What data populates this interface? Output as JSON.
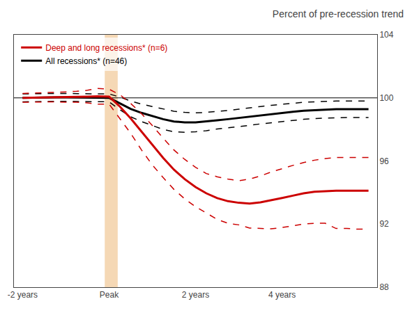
{
  "chart_data": {
    "type": "line",
    "title": "Percent of pre-recession trend",
    "x": [
      -2.0,
      -1.75,
      -1.5,
      -1.25,
      -1.0,
      -0.75,
      -0.5,
      -0.25,
      0.0,
      0.25,
      0.5,
      0.75,
      1.0,
      1.25,
      1.5,
      1.75,
      2.0,
      2.25,
      2.5,
      2.75,
      3.0,
      3.25,
      3.5,
      3.75,
      4.0,
      4.25,
      4.5,
      4.75,
      5.0,
      5.25,
      5.5,
      5.75,
      6.0
    ],
    "series": [
      {
        "color": "#000000",
        "line_style": "dashed",
        "values": [
          100.25,
          100.27,
          100.28,
          100.28,
          100.28,
          100.26,
          100.25,
          100.25,
          100.25,
          100.05,
          99.8,
          99.6,
          99.45,
          99.3,
          99.15,
          99.08,
          99.05,
          99.08,
          99.13,
          99.2,
          99.28,
          99.38,
          99.45,
          99.53,
          99.6,
          99.68,
          99.72,
          99.75,
          99.78,
          99.8,
          99.8,
          99.8,
          99.8
        ]
      },
      {
        "color": "#000000",
        "line_style": "dashed",
        "values": [
          99.75,
          99.77,
          99.78,
          99.78,
          99.78,
          99.78,
          99.75,
          99.75,
          99.75,
          99.25,
          98.8,
          98.5,
          98.25,
          98.0,
          97.85,
          97.82,
          97.85,
          97.92,
          98.03,
          98.1,
          98.18,
          98.26,
          98.35,
          98.43,
          98.5,
          98.56,
          98.64,
          98.69,
          98.72,
          98.76,
          98.76,
          98.76,
          98.76
        ]
      },
      {
        "name": "All recessions* (n=46)",
        "color": "#000000",
        "line_style": "solid",
        "values": [
          100.0,
          100.02,
          100.03,
          100.03,
          100.03,
          100.02,
          100.0,
          100.0,
          100.0,
          99.65,
          99.3,
          99.05,
          98.85,
          98.65,
          98.5,
          98.45,
          98.45,
          98.5,
          98.58,
          98.65,
          98.73,
          98.82,
          98.9,
          98.98,
          99.05,
          99.12,
          99.18,
          99.22,
          99.25,
          99.28,
          99.28,
          99.28,
          99.28
        ]
      },
      {
        "color": "#cc0000",
        "line_style": "dashed",
        "values": [
          100.28,
          100.3,
          100.32,
          100.35,
          100.38,
          100.42,
          100.48,
          100.6,
          100.55,
          100.2,
          99.65,
          99.0,
          98.25,
          97.45,
          96.7,
          96.1,
          95.6,
          95.2,
          95.0,
          94.85,
          94.75,
          94.85,
          95.05,
          95.3,
          95.52,
          95.72,
          95.9,
          96.05,
          96.15,
          96.22,
          96.22,
          96.22,
          96.22
        ]
      },
      {
        "color": "#cc0000",
        "line_style": "dashed",
        "values": [
          99.72,
          99.74,
          99.74,
          99.75,
          99.72,
          99.72,
          99.68,
          99.6,
          99.61,
          98.7,
          97.75,
          96.7,
          95.75,
          94.95,
          94.2,
          93.6,
          93.1,
          92.7,
          92.3,
          92.05,
          91.95,
          91.75,
          91.71,
          91.7,
          91.78,
          91.88,
          92.0,
          92.05,
          92.05,
          91.72,
          91.72,
          91.68,
          91.68
        ]
      },
      {
        "name": "Deep and long recessions* (n=6)",
        "color": "#cc0000",
        "line_style": "solid",
        "values": [
          100.0,
          100.02,
          100.03,
          100.05,
          100.05,
          100.07,
          100.08,
          100.1,
          100.08,
          99.45,
          98.7,
          97.85,
          97.0,
          96.2,
          95.45,
          94.85,
          94.35,
          93.95,
          93.65,
          93.45,
          93.35,
          93.3,
          93.38,
          93.5,
          93.65,
          93.8,
          93.95,
          94.05,
          94.1,
          94.12,
          94.12,
          94.12,
          94.12
        ]
      }
    ],
    "xlim": [
      -2.2,
      6.2
    ],
    "xticks": [
      {
        "value": -2,
        "label": "-2 years"
      },
      {
        "value": 0,
        "label": "Peak"
      },
      {
        "value": 2,
        "label": "2 years"
      },
      {
        "value": 4,
        "label": "4 years"
      }
    ],
    "ylim": [
      88,
      104
    ],
    "yticks": [
      88,
      92,
      96,
      100,
      104
    ],
    "grid": false,
    "legend": "upper left",
    "spans": [
      {
        "x0": -0.1,
        "x1": 0.2,
        "color": "#f5d8b5"
      }
    ],
    "hlines": [
      {
        "y": 100,
        "color": "#000000"
      }
    ]
  }
}
